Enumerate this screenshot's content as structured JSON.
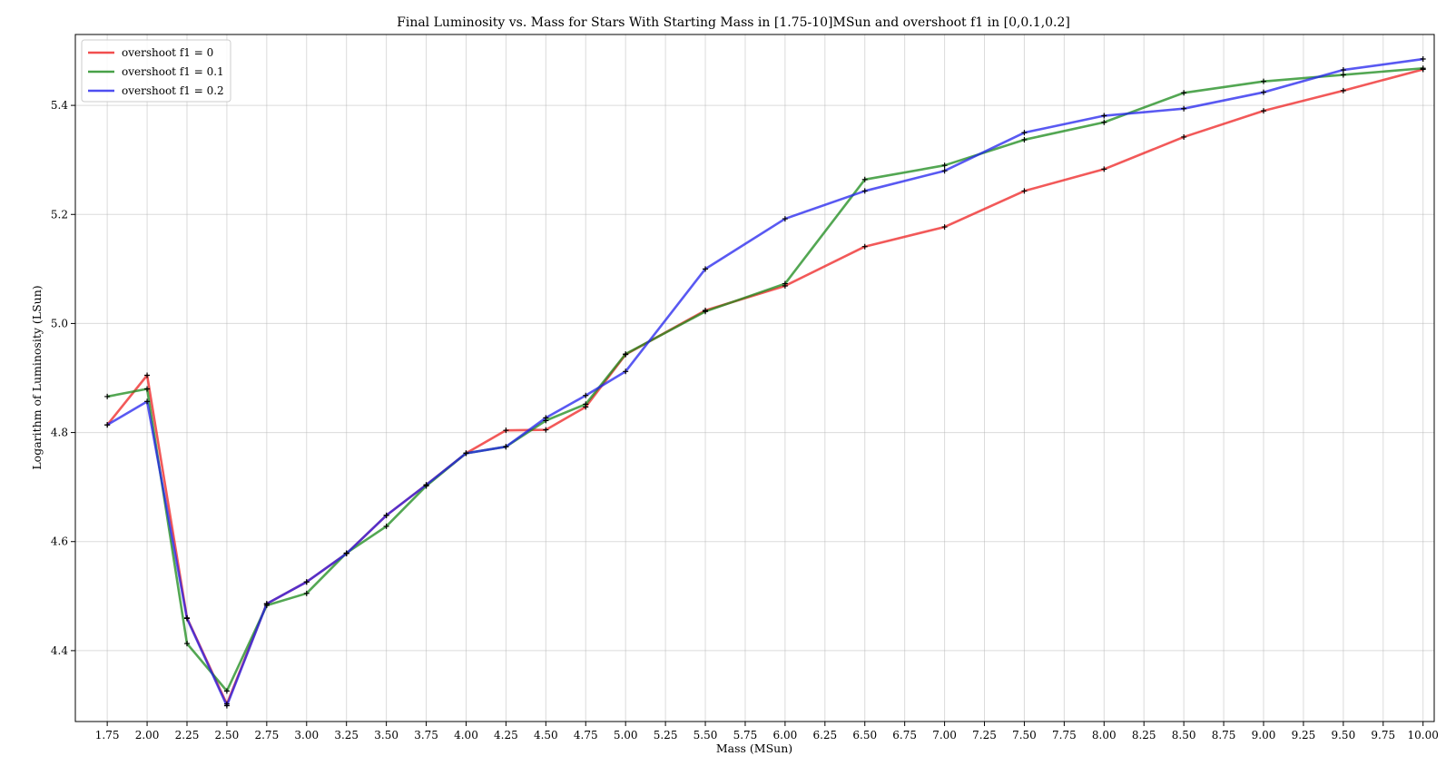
{
  "chart_data": {
    "type": "line",
    "title": "Final Luminosity vs. Mass for Stars With Starting Mass in [1.75-10]MSun and overshoot f1 in [0,0.1,0.2]",
    "xlabel": "Mass (MSun)",
    "ylabel": "Logarithm of Luminosity (LSun)",
    "xlim": [
      1.55,
      10.07
    ],
    "ylim": [
      4.27,
      5.53
    ],
    "x_ticks": [
      "1.75",
      "2.00",
      "2.25",
      "2.50",
      "2.75",
      "3.00",
      "3.25",
      "3.50",
      "3.75",
      "4.00",
      "4.25",
      "4.50",
      "4.75",
      "5.00",
      "5.25",
      "5.50",
      "5.75",
      "6.00",
      "6.25",
      "6.50",
      "6.75",
      "7.00",
      "7.25",
      "7.50",
      "7.75",
      "8.00",
      "8.25",
      "8.50",
      "8.75",
      "9.00",
      "9.25",
      "9.50",
      "9.75",
      "10.00"
    ],
    "y_ticks": [
      "4.4",
      "4.6",
      "4.8",
      "5.0",
      "5.2",
      "5.4"
    ],
    "grid": true,
    "legend_position": "top-left",
    "x": [
      1.75,
      2.0,
      2.25,
      2.5,
      2.75,
      3.0,
      3.25,
      3.5,
      3.75,
      4.0,
      4.25,
      4.5,
      4.75,
      5.0,
      5.5,
      6.0,
      6.5,
      7.0,
      7.5,
      8.0,
      8.5,
      9.0,
      9.5,
      10.0
    ],
    "series": [
      {
        "name": "overshoot f1 = 0",
        "color": "#ee2222",
        "values": [
          4.814,
          4.905,
          4.46,
          4.302,
          4.486,
          4.526,
          4.578,
          4.648,
          4.704,
          4.762,
          4.804,
          4.805,
          4.847,
          4.943,
          5.024,
          5.069,
          5.141,
          5.177,
          5.243,
          5.283,
          5.342,
          5.39,
          5.427,
          5.466
        ]
      },
      {
        "name": "overshoot f1 = 0.1",
        "color": "#1a8a1a",
        "values": [
          4.866,
          4.88,
          4.413,
          4.326,
          4.483,
          4.505,
          4.579,
          4.628,
          4.702,
          4.762,
          4.774,
          4.822,
          4.852,
          4.944,
          5.022,
          5.073,
          5.264,
          5.29,
          5.337,
          5.369,
          5.423,
          5.444,
          5.456,
          5.468
        ]
      },
      {
        "name": "overshoot f1 = 0.2",
        "color": "#2222ee",
        "values": [
          4.814,
          4.857,
          4.459,
          4.299,
          4.486,
          4.526,
          4.578,
          4.648,
          4.704,
          4.762,
          4.774,
          4.827,
          4.868,
          4.912,
          5.1,
          5.192,
          5.243,
          5.28,
          5.35,
          5.381,
          5.394,
          5.424,
          5.465,
          5.485
        ]
      }
    ]
  }
}
